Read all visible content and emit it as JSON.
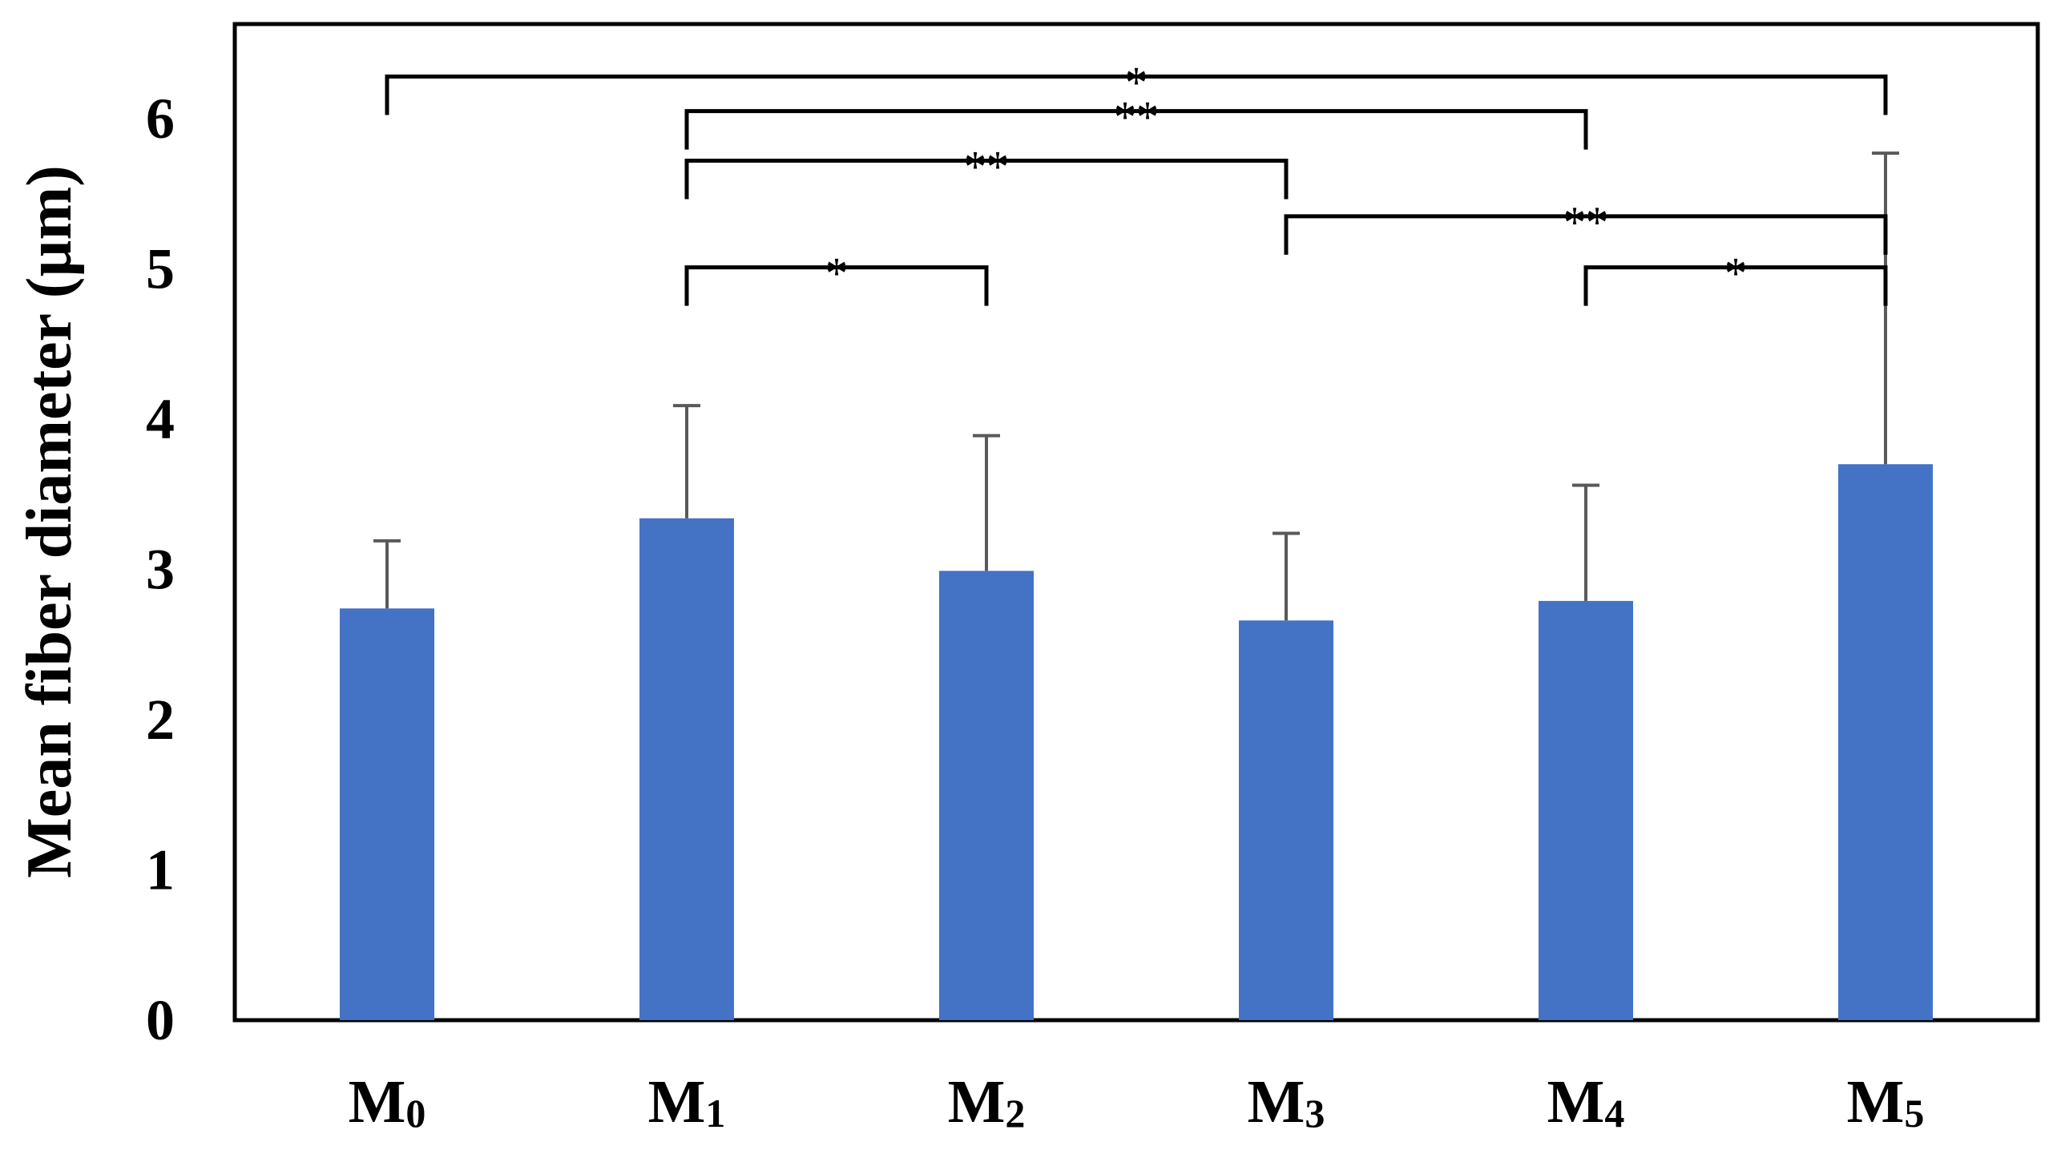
{
  "chart_data": {
    "type": "bar",
    "title": "",
    "xlabel": "",
    "ylabel": "Mean  fiber diameter (µm)",
    "ylim": [
      0,
      6.5
    ],
    "yticks": [
      0,
      1,
      2,
      3,
      4,
      5,
      6
    ],
    "grid": false,
    "legend": "none",
    "categories": [
      {
        "base": "M",
        "sub": "0"
      },
      {
        "base": "M",
        "sub": "1"
      },
      {
        "base": "M",
        "sub": "2"
      },
      {
        "base": "M",
        "sub": "3"
      },
      {
        "base": "M",
        "sub": "4"
      },
      {
        "base": "M",
        "sub": "5"
      }
    ],
    "values": [
      2.74,
      3.34,
      2.99,
      2.66,
      2.79,
      3.7
    ],
    "error_upper": [
      0.45,
      0.75,
      0.9,
      0.58,
      0.77,
      2.07
    ],
    "bar_color": "#4472C4",
    "error_color": "#595959",
    "significance": [
      {
        "from": 0,
        "to": 5,
        "y": 6.28,
        "label": "*"
      },
      {
        "from": 1,
        "to": 4,
        "y": 6.05,
        "label": "**"
      },
      {
        "from": 1,
        "to": 3,
        "y": 5.72,
        "label": "**"
      },
      {
        "from": 3,
        "to": 5,
        "y": 5.35,
        "label": "**"
      },
      {
        "from": 1,
        "to": 2,
        "y": 5.01,
        "label": "*"
      },
      {
        "from": 4,
        "to": 5,
        "y": 5.01,
        "label": "*"
      }
    ]
  }
}
